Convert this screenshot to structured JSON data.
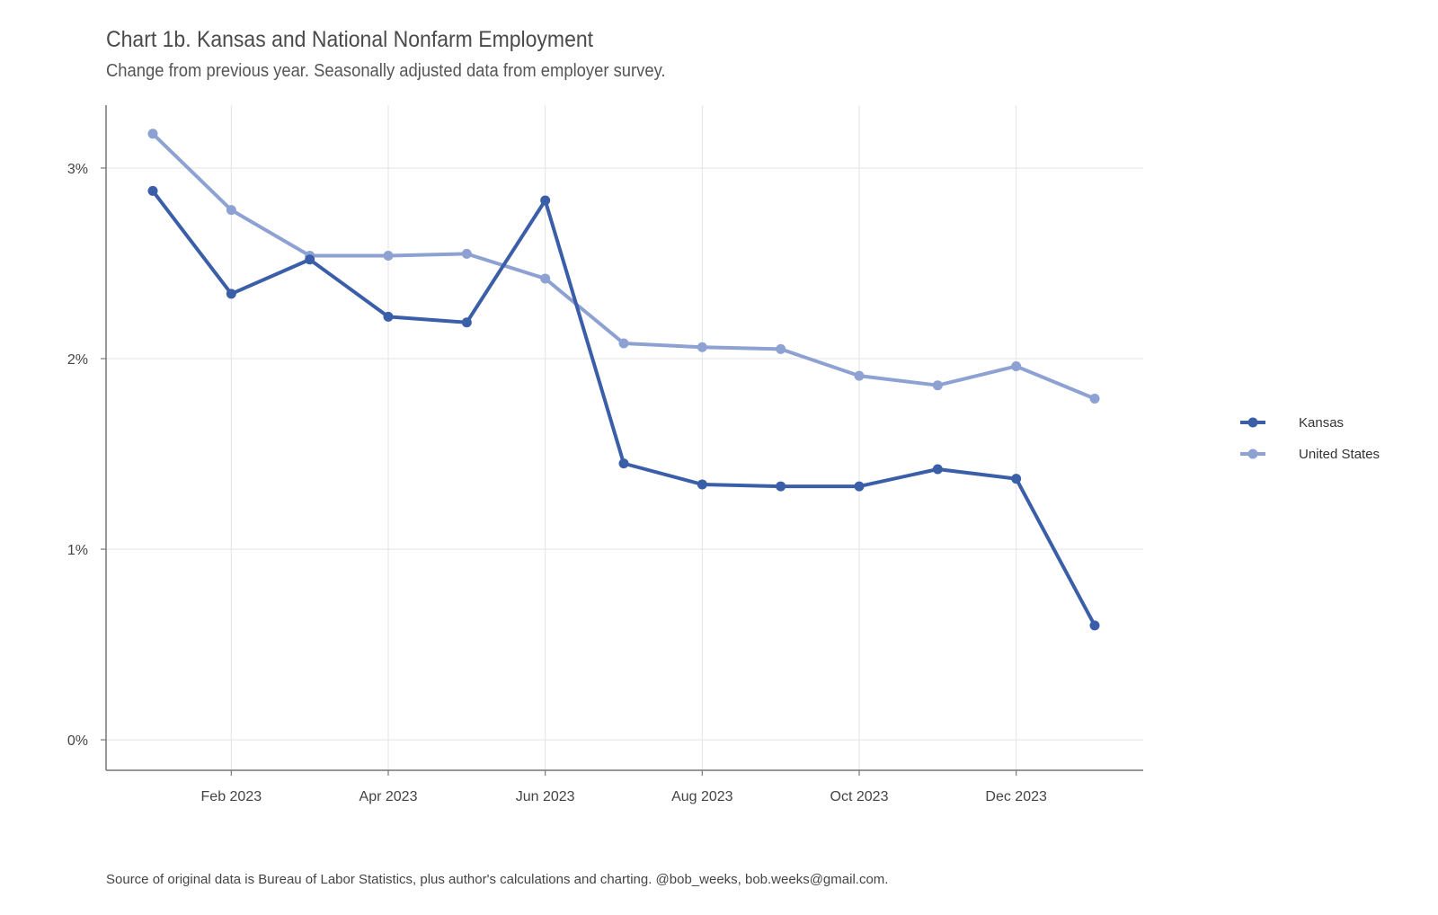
{
  "chart_data": {
    "type": "line",
    "title": "Chart 1b. Kansas and National Nonfarm Employment",
    "subtitle": "Change from previous year. Seasonally adjusted data from employer survey.",
    "caption": "Source of original data is Bureau of Labor Statistics, plus author's calculations and charting. @bob_weeks, bob.weeks@gmail.com.",
    "xlabel": "",
    "ylabel": "",
    "x": [
      "2023-01",
      "2023-02",
      "2023-03",
      "2023-04",
      "2023-05",
      "2023-06",
      "2023-07",
      "2023-08",
      "2023-09",
      "2023-10",
      "2023-11",
      "2023-12",
      "2024-01"
    ],
    "x_ticks": [
      {
        "x": "2023-02",
        "label": "Feb 2023"
      },
      {
        "x": "2023-04",
        "label": "Apr 2023"
      },
      {
        "x": "2023-06",
        "label": "Jun 2023"
      },
      {
        "x": "2023-08",
        "label": "Aug 2023"
      },
      {
        "x": "2023-10",
        "label": "Oct 2023"
      },
      {
        "x": "2023-12",
        "label": "Dec 2023"
      }
    ],
    "y_ticks": [
      {
        "value": 0,
        "label": "0%"
      },
      {
        "value": 1,
        "label": "1%"
      },
      {
        "value": 2,
        "label": "2%"
      },
      {
        "value": 3,
        "label": "3%"
      }
    ],
    "ylim": [
      -0.16,
      3.33
    ],
    "grid": true,
    "legend_position": "right",
    "series": [
      {
        "name": "Kansas",
        "color": "#3a5ea8",
        "values": [
          2.88,
          2.34,
          2.52,
          2.22,
          2.19,
          2.83,
          1.45,
          1.34,
          1.33,
          1.33,
          1.42,
          1.37,
          0.6
        ]
      },
      {
        "name": "United States",
        "color": "#8ea1d3",
        "values": [
          3.18,
          2.78,
          2.54,
          2.54,
          2.55,
          2.42,
          2.08,
          2.06,
          2.05,
          1.91,
          1.86,
          1.96,
          1.79
        ]
      }
    ]
  }
}
